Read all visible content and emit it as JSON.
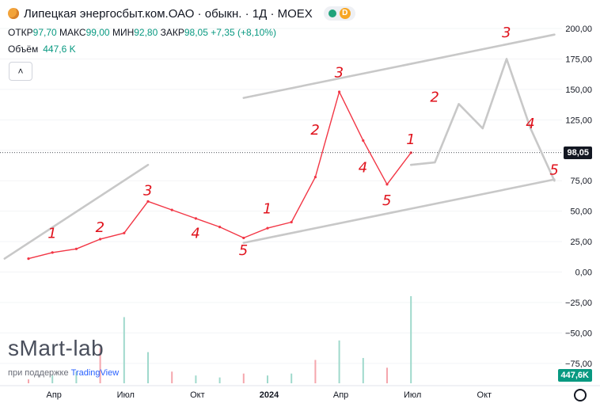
{
  "header": {
    "title": "Липецкая энергосбыт.ком.ОАО · обыкн. · 1Д · MOEX",
    "badge": "D"
  },
  "ohlc": {
    "open_label": "ОТКР",
    "open": "97,70",
    "high_label": "МАКС",
    "high": "99,00",
    "low_label": "МИН",
    "low": "92,80",
    "close_label": "ЗАКР",
    "close": "98,05",
    "change": "+7,35 (+8,10%)"
  },
  "volume": {
    "label": "Объём",
    "value": "447,6 K",
    "badge": "447,6K"
  },
  "watermark": {
    "brand": "sMart-lab",
    "support_prefix": "при поддержке",
    "support_brand": "TradingView"
  },
  "colors": {
    "up": "#089981",
    "down": "#f23645",
    "price_line": "#131722",
    "annotation": "#c8c8c8",
    "wave_label": "#e0121c"
  },
  "icons": [
    "logo-icon",
    "chevron-up-icon",
    "gear-icon"
  ],
  "chart_data": {
    "type": "line",
    "price_axis_ticks": [
      "200,00",
      "175,00",
      "150,00",
      "125,00",
      "100,00",
      "75,00",
      "50,00",
      "25,00",
      "0,00",
      "−25,00",
      "−50,00",
      "−75,00"
    ],
    "ylim": [
      -90,
      210
    ],
    "time_axis_ticks": [
      "Апр",
      "Июл",
      "Окт",
      "2024",
      "Апр",
      "Июл",
      "Окт"
    ],
    "last_price": "98,05",
    "series": [
      {
        "x": [
          "2023-03",
          "2023-04",
          "2023-05",
          "2023-06",
          "2023-07",
          "2023-08",
          "2023-09",
          "2023-10",
          "2023-11",
          "2023-12",
          "2024-01",
          "2024-02",
          "2024-03",
          "2024-04",
          "2024-05",
          "2024-06",
          "2024-07"
        ],
        "values": [
          11,
          16,
          19,
          27,
          32,
          58,
          51,
          44,
          37,
          28,
          36,
          41,
          78,
          148,
          108,
          72,
          98
        ]
      }
    ],
    "forecast": {
      "x": [
        "2024-07",
        "2024-08",
        "2024-09",
        "2024-10",
        "2024-11",
        "2024-12",
        "2025-01"
      ],
      "values": [
        88,
        90,
        138,
        118,
        175,
        118,
        75
      ]
    },
    "volume": {
      "x": [
        "2023-03",
        "2023-04",
        "2023-05",
        "2023-06",
        "2023-07",
        "2023-08",
        "2023-09",
        "2023-10",
        "2023-11",
        "2023-12",
        "2024-01",
        "2024-02",
        "2024-03",
        "2024-04",
        "2024-05",
        "2024-06",
        "2024-07"
      ],
      "values": [
        20,
        40,
        60,
        180,
        340,
        160,
        60,
        40,
        30,
        50,
        40,
        50,
        120,
        220,
        130,
        80,
        447.6
      ]
    },
    "wave_labels": [
      "1",
      "2",
      "3",
      "4",
      "5",
      "1",
      "2",
      "3",
      "4",
      "5",
      "1",
      "2",
      "3",
      "4",
      "5"
    ]
  }
}
